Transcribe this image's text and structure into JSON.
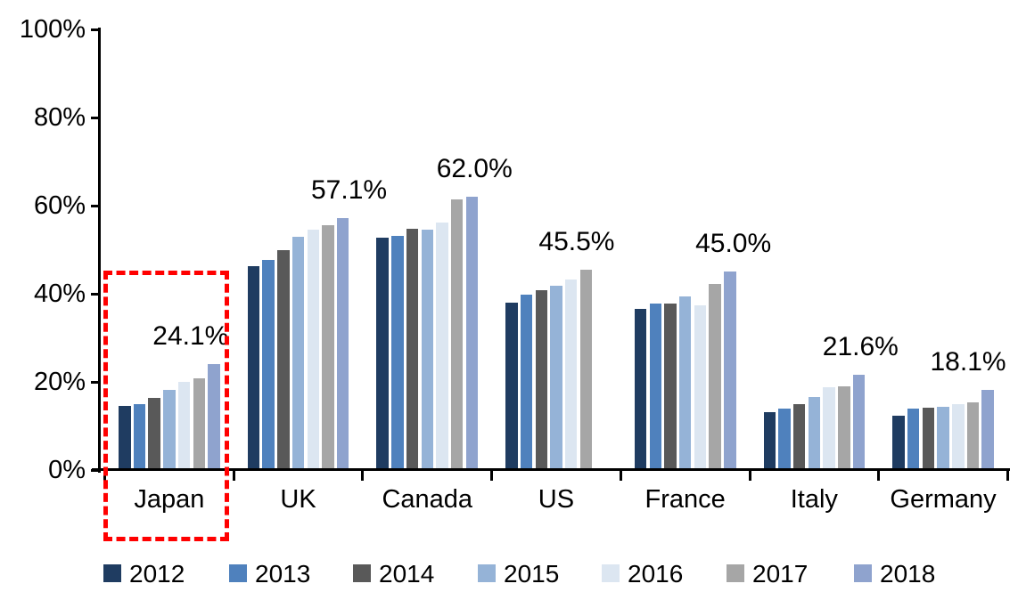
{
  "chart_data": {
    "type": "bar",
    "title": "",
    "categories": [
      "Japan",
      "UK",
      "Canada",
      "US",
      "France",
      "Italy",
      "Germany"
    ],
    "series": [
      {
        "name": "2012",
        "color": "#1F3C61",
        "values": [
          14.6,
          46.2,
          52.8,
          38.0,
          36.6,
          13.2,
          12.4
        ]
      },
      {
        "name": "2013",
        "color": "#4F81BD",
        "values": [
          14.9,
          47.6,
          53.2,
          39.8,
          37.8,
          13.9,
          13.9
        ]
      },
      {
        "name": "2014",
        "color": "#595959",
        "values": [
          16.4,
          49.8,
          54.7,
          40.9,
          37.7,
          15.0,
          14.1
        ]
      },
      {
        "name": "2015",
        "color": "#95B3D7",
        "values": [
          18.1,
          53.0,
          54.6,
          41.9,
          39.3,
          16.6,
          14.4
        ]
      },
      {
        "name": "2016",
        "color": "#DCE6F1",
        "values": [
          19.9,
          54.5,
          56.1,
          43.3,
          37.3,
          18.8,
          14.9
        ]
      },
      {
        "name": "2017",
        "color": "#A6A6A6",
        "values": [
          20.8,
          55.6,
          61.4,
          45.5,
          42.3,
          18.9,
          15.4
        ]
      },
      {
        "name": "2018",
        "color": "#8FA3CE",
        "values": [
          24.1,
          57.1,
          62.0,
          null,
          45.0,
          21.6,
          18.1
        ]
      }
    ],
    "data_labels": [
      "24.1%",
      "57.1%",
      "62.0%",
      "45.5%",
      "45.0%",
      "21.6%",
      "18.1%"
    ],
    "y_axis": {
      "ticks": [
        "100%",
        "80%",
        "60%",
        "40%",
        "20%",
        "0%"
      ],
      "min": 0,
      "max": 100,
      "step": 20
    },
    "x_axis": {
      "label": ""
    },
    "legend": {
      "position": "bottom",
      "entries": [
        "2012",
        "2013",
        "2014",
        "2015",
        "2016",
        "2017",
        "2018"
      ]
    },
    "annotation": {
      "type": "dashed-rect",
      "target": "Japan",
      "color": "#FF0000"
    },
    "grid": false
  }
}
